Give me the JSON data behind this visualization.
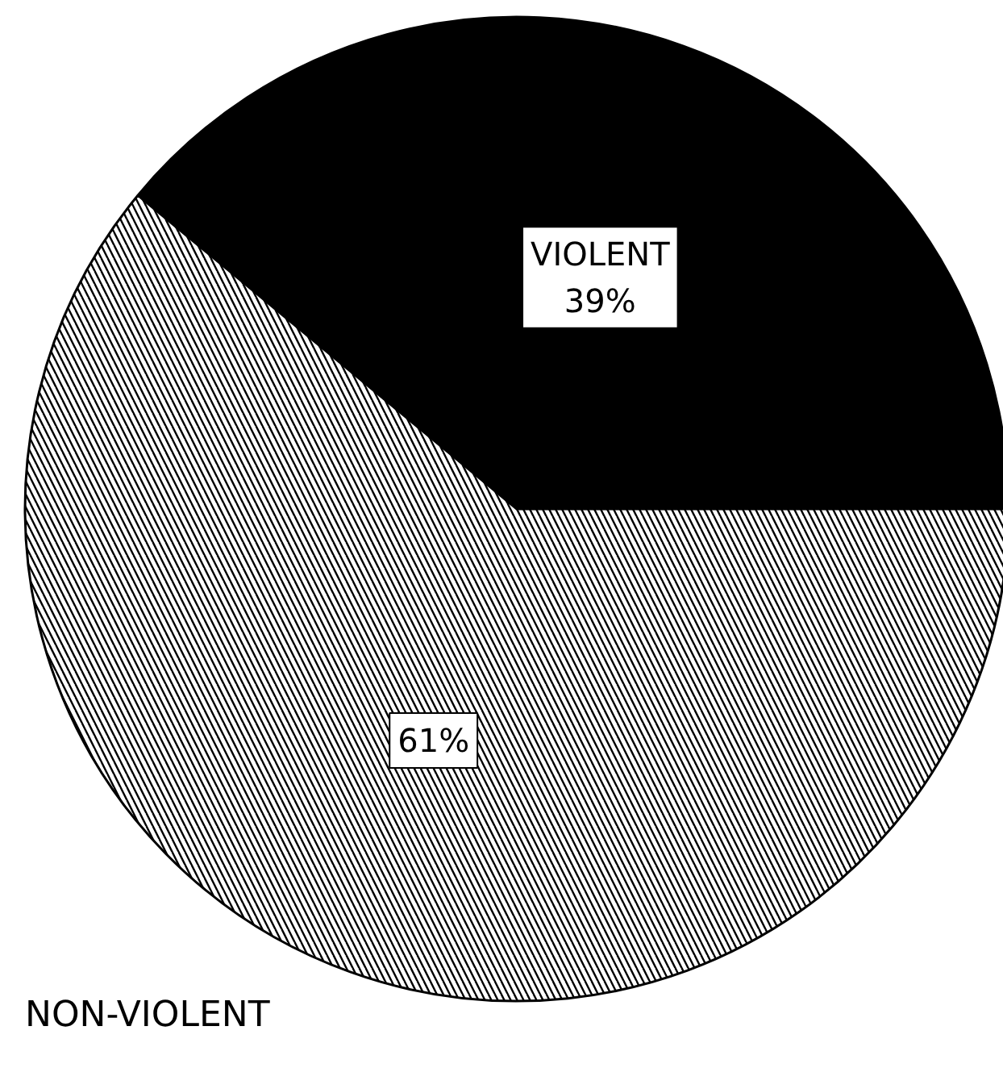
{
  "chart_data": {
    "type": "pie",
    "categories": [
      "VIOLENT",
      "NON-VIOLENT"
    ],
    "values": [
      39,
      61
    ],
    "colors": [
      "#000000",
      "#ffffff"
    ],
    "value_labels": [
      "39%",
      "61%"
    ]
  }
}
